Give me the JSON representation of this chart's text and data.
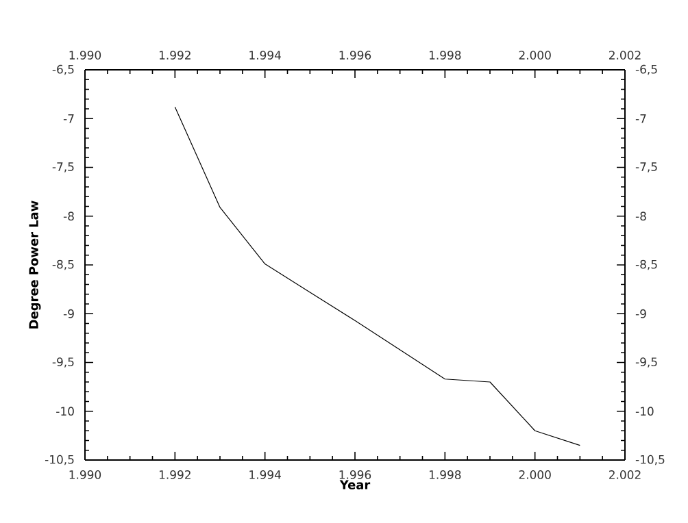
{
  "chart_data": {
    "type": "line",
    "xlabel": "Year",
    "ylabel": "Degree Power Law",
    "x": [
      1992,
      1993,
      1994,
      1995,
      1996,
      1997,
      1998,
      1999,
      2000,
      2001
    ],
    "series": [
      {
        "color": "#000000",
        "values": [
          -6.88,
          -7.91,
          -8.49,
          -8.78,
          -9.07,
          -9.37,
          -9.67,
          -9.7,
          -10.2,
          -10.35
        ]
      }
    ],
    "xlim": [
      1990,
      2002
    ],
    "xticks": [
      {
        "value": 1990,
        "label": "1.990"
      },
      {
        "value": 1992,
        "label": "1.992"
      },
      {
        "value": 1994,
        "label": "1.994"
      },
      {
        "value": 1996,
        "label": "1.996"
      },
      {
        "value": 1998,
        "label": "1.998"
      },
      {
        "value": 2000,
        "label": "2.000"
      },
      {
        "value": 2002,
        "label": "2.002"
      }
    ],
    "x2lim": [
      1990,
      2002
    ],
    "x2ticks": [
      {
        "value": 1990,
        "label": "1.990"
      },
      {
        "value": 1992,
        "label": "1.992"
      },
      {
        "value": 1994,
        "label": "1.994"
      },
      {
        "value": 1996,
        "label": "1.996"
      },
      {
        "value": 1998,
        "label": "1.998"
      },
      {
        "value": 2000,
        "label": "2.000"
      },
      {
        "value": 2002,
        "label": "2.002"
      }
    ],
    "ylim": [
      -10.5,
      -6.5
    ],
    "yticks": [
      {
        "value": -10.5,
        "label": "-10,5"
      },
      -10,
      {
        "value": -9.5,
        "label": "-9,5"
      },
      -9,
      {
        "value": -8.5,
        "label": "-8,5"
      },
      -8,
      {
        "value": -7.5,
        "label": "-7,5"
      },
      -7,
      {
        "value": -6.5,
        "label": "-6,5"
      }
    ],
    "y2lim": [
      -10.5,
      -6.5
    ],
    "y2ticks": [
      {
        "value": -10.5,
        "label": "-10,5"
      },
      -10,
      {
        "value": -9.5,
        "label": "-9,5"
      },
      -9,
      {
        "value": -8.5,
        "label": "-8,5"
      },
      -8,
      {
        "value": -7.5,
        "label": "-7,5"
      },
      -7,
      {
        "value": -6.5,
        "label": "-6,5"
      }
    ],
    "grid": false,
    "marker": "none",
    "line_style": "solid"
  }
}
